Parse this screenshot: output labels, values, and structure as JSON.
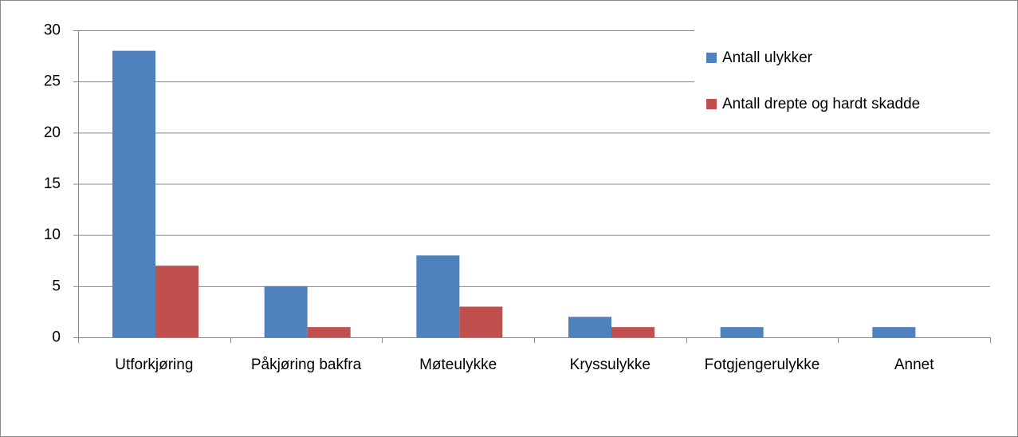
{
  "chart_data": {
    "type": "bar",
    "categories": [
      "Utforkjøring",
      "Påkjøring bakfra",
      "Møteulykke",
      "Kryssulykke",
      "Fotgjengerulykke",
      "Annet"
    ],
    "series": [
      {
        "name": "Antall ulykker",
        "color": "#4f81bd",
        "values": [
          28,
          5,
          8,
          2,
          1,
          1
        ]
      },
      {
        "name": "Antall drepte og hardt skadde",
        "color": "#c0504d",
        "values": [
          7,
          1,
          3,
          1,
          0,
          0
        ]
      }
    ],
    "ylim": [
      0,
      30
    ],
    "yticks": [
      0,
      5,
      10,
      15,
      20,
      25,
      30
    ],
    "grid": true,
    "legend": "top-right"
  }
}
